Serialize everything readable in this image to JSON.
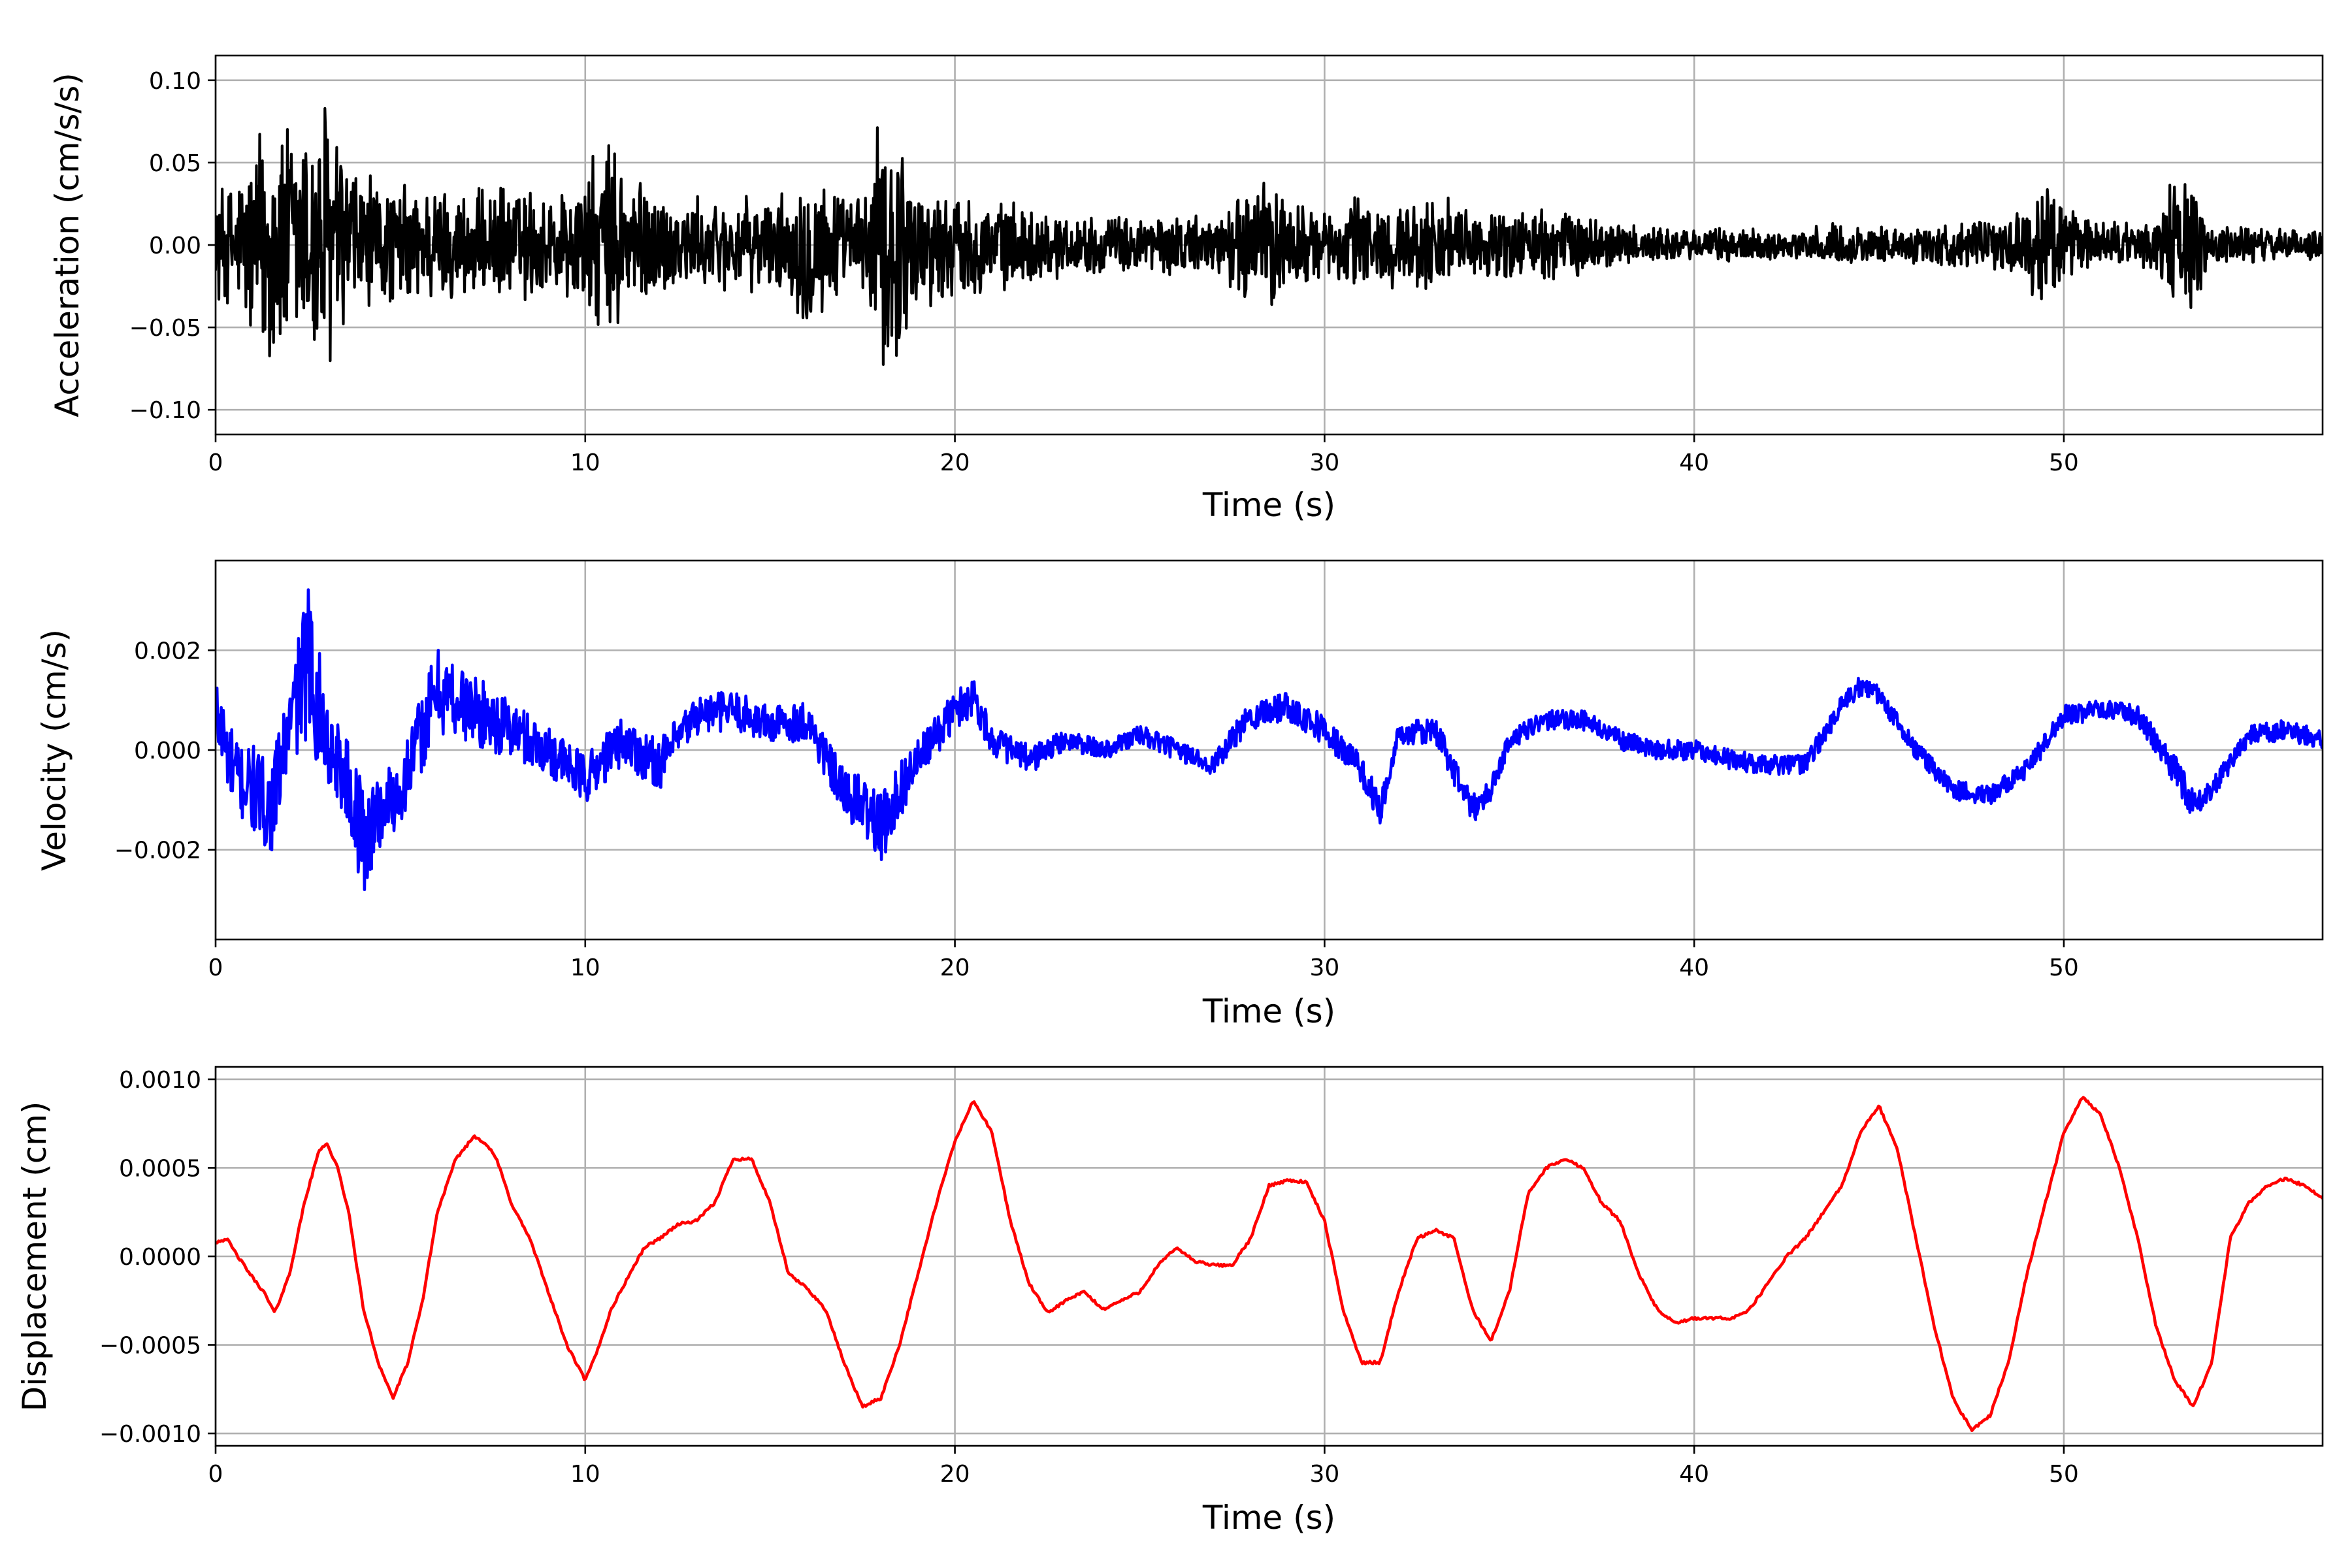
{
  "chart_data": [
    {
      "type": "line",
      "xlabel": "Time (s)",
      "ylabel": "Acceleration (cm/s/s)",
      "xlim": [
        0,
        57
      ],
      "ylim": [
        -0.115,
        0.115
      ],
      "xticks": [
        0,
        10,
        20,
        30,
        40,
        50
      ],
      "xtick_labels": [
        "0",
        "10",
        "20",
        "30",
        "40",
        "50"
      ],
      "yticks": [
        0.1,
        0.05,
        0.0,
        -0.05,
        -0.1
      ],
      "ytick_labels": [
        "0.10",
        "0.05",
        "0.00",
        "−0.05",
        "−0.10"
      ],
      "grid": true,
      "color": "#000000",
      "series": [
        {
          "x": [
            0,
            0.5,
            1,
            1.5,
            2,
            2.5,
            3,
            3.5,
            4,
            4.5,
            5,
            6,
            7,
            8,
            9,
            10,
            10.5,
            11,
            12,
            13,
            14,
            15,
            15.5,
            16,
            16.5,
            17,
            17.5,
            18,
            18.5,
            19,
            20,
            21,
            22,
            23,
            24,
            25,
            26,
            27,
            28,
            28.5,
            29,
            30,
            31,
            32,
            33,
            34,
            35,
            36,
            37,
            38,
            39,
            40,
            41,
            42,
            43,
            44,
            45,
            46,
            47,
            48,
            49,
            49.5,
            50,
            51,
            52,
            52.5,
            53,
            53.5,
            54,
            55,
            56,
            57
          ],
          "amp": [
            0.04,
            0.04,
            0.07,
            0.09,
            0.08,
            0.09,
            0.1,
            0.06,
            0.05,
            0.04,
            0.04,
            0.04,
            0.035,
            0.04,
            0.035,
            0.045,
            0.07,
            0.06,
            0.035,
            0.03,
            0.03,
            0.03,
            0.035,
            0.055,
            0.05,
            0.03,
            0.035,
            0.085,
            0.08,
            0.04,
            0.035,
            0.03,
            0.025,
            0.02,
            0.018,
            0.02,
            0.02,
            0.018,
            0.04,
            0.045,
            0.035,
            0.02,
            0.035,
            0.025,
            0.035,
            0.02,
            0.025,
            0.025,
            0.02,
            0.015,
            0.012,
            0.01,
            0.012,
            0.01,
            0.01,
            0.015,
            0.012,
            0.012,
            0.015,
            0.015,
            0.025,
            0.05,
            0.025,
            0.015,
            0.015,
            0.02,
            0.05,
            0.04,
            0.015,
            0.012,
            0.01,
            0.01
          ]
        }
      ]
    },
    {
      "type": "line",
      "xlabel": "Time (s)",
      "ylabel": "Velocity (cm/s)",
      "xlim": [
        0,
        57
      ],
      "ylim": [
        -0.0038,
        0.0038
      ],
      "xticks": [
        0,
        10,
        20,
        30,
        40,
        50
      ],
      "xtick_labels": [
        "0",
        "10",
        "20",
        "30",
        "40",
        "50"
      ],
      "yticks": [
        0.002,
        0.0,
        -0.002
      ],
      "ytick_labels": [
        "0.002",
        "0.000",
        "−0.002"
      ],
      "grid": true,
      "color": "#0000ff",
      "series": [
        {
          "x": [
            0,
            0.5,
            1,
            1.5,
            2,
            2.5,
            3,
            3.5,
            4,
            4.5,
            5,
            6,
            7,
            8,
            9,
            10,
            11,
            12,
            13,
            14,
            15,
            16,
            17,
            17.5,
            18,
            18.5,
            19,
            20,
            20.5,
            21,
            22,
            23,
            24,
            25,
            26,
            27,
            28,
            29,
            30,
            31,
            31.5,
            32,
            33,
            34,
            34.5,
            35,
            36,
            37,
            38,
            39,
            40,
            41,
            42,
            43,
            44,
            44.5,
            45,
            46,
            47,
            48,
            49,
            50,
            51,
            52,
            53,
            53.5,
            54,
            55,
            56,
            57
          ],
          "y": [
            0.0008,
            -0.0005,
            -0.0008,
            -0.0012,
            0.0005,
            0.0018,
            0.0002,
            -0.0005,
            -0.0018,
            -0.0012,
            -0.0008,
            0.0012,
            0.0008,
            0.0004,
            0.0,
            -0.0006,
            0.0002,
            -0.0003,
            0.0007,
            0.0008,
            0.0005,
            0.0006,
            -0.0009,
            -0.0011,
            -0.0016,
            -0.0008,
            -0.0002,
            0.0008,
            0.0011,
            0.0002,
            -0.0002,
            0.0002,
            0.0,
            0.0003,
            0.0,
            -0.0003,
            0.0007,
            0.0009,
            0.0004,
            -0.0004,
            -0.0012,
            0.0003,
            0.0004,
            -0.0012,
            -0.0008,
            0.0002,
            0.0006,
            0.0006,
            0.0002,
            0.0,
            0.0,
            -0.0002,
            -0.0003,
            -0.0003,
            0.0009,
            0.0013,
            0.0011,
            0.0,
            -0.0008,
            -0.0009,
            -0.0004,
            0.0007,
            0.0008,
            0.0007,
            -0.0004,
            -0.0011,
            -0.0008,
            0.0003,
            0.0004,
            0.0002
          ],
          "noise": [
            0.0008,
            0.0008,
            0.0009,
            0.0009,
            0.0008,
            0.0016,
            0.0009,
            0.0008,
            0.0012,
            0.0008,
            0.0007,
            0.0009,
            0.0007,
            0.0006,
            0.0005,
            0.0005,
            0.0005,
            0.0005,
            0.0004,
            0.0004,
            0.0004,
            0.0004,
            0.0005,
            0.0006,
            0.0007,
            0.0006,
            0.0004,
            0.0004,
            0.0004,
            0.0003,
            0.0003,
            0.0002,
            0.0002,
            0.0002,
            0.0002,
            0.0002,
            0.0003,
            0.0003,
            0.0003,
            0.0003,
            0.0003,
            0.0002,
            0.0003,
            0.0003,
            0.0002,
            0.0002,
            0.0002,
            0.0002,
            0.0002,
            0.0002,
            0.0002,
            0.0002,
            0.0002,
            0.0002,
            0.0002,
            0.0002,
            0.0002,
            0.0002,
            0.0002,
            0.0002,
            0.0002,
            0.0002,
            0.0002,
            0.0002,
            0.0003,
            0.0003,
            0.0002,
            0.0002,
            0.0002,
            0.0002
          ]
        }
      ]
    },
    {
      "type": "line",
      "xlabel": "Time (s)",
      "ylabel": "Displacement (cm)",
      "xlim": [
        0,
        57
      ],
      "ylim": [
        -0.00107,
        0.00107
      ],
      "xticks": [
        0,
        10,
        20,
        30,
        40,
        50
      ],
      "xtick_labels": [
        "0",
        "10",
        "20",
        "30",
        "40",
        "50"
      ],
      "yticks": [
        0.001,
        0.0005,
        0.0,
        -0.0005,
        -0.001
      ],
      "ytick_labels": [
        "0.0010",
        "0.0005",
        "0.0000",
        "−0.0005",
        "−0.0010"
      ],
      "grid": true,
      "color": "#ff0000",
      "series": [
        {
          "x": [
            0,
            0.3,
            0.6,
            1.0,
            1.3,
            1.6,
            2.0,
            2.4,
            2.8,
            3.0,
            3.3,
            3.6,
            4.0,
            4.4,
            4.8,
            5.2,
            5.6,
            6.0,
            6.5,
            7.0,
            7.3,
            7.6,
            8.0,
            8.5,
            9.0,
            9.5,
            10.0,
            10.3,
            10.7,
            11.2,
            11.6,
            12.0,
            12.5,
            13.0,
            13.5,
            14.0,
            14.5,
            15.0,
            15.5,
            16.0,
            16.5,
            17.0,
            17.5,
            18.0,
            18.5,
            19.0,
            19.5,
            20.0,
            20.5,
            21.0,
            21.5,
            22.0,
            22.5,
            23.0,
            23.5,
            24.0,
            24.5,
            25.0,
            25.5,
            26.0,
            26.5,
            27.0,
            27.5,
            28.0,
            28.5,
            29.0,
            29.5,
            30.0,
            30.5,
            31.0,
            31.5,
            32.0,
            32.5,
            33.0,
            33.5,
            34.0,
            34.5,
            35.0,
            35.5,
            36.0,
            36.5,
            37.0,
            37.5,
            38.0,
            38.5,
            39.0,
            39.5,
            40.0,
            40.5,
            41.0,
            41.5,
            42.0,
            42.5,
            43.0,
            43.5,
            44.0,
            44.5,
            45.0,
            45.5,
            46.0,
            46.5,
            47.0,
            47.5,
            48.0,
            48.5,
            49.0,
            49.5,
            50.0,
            50.5,
            51.0,
            51.5,
            52.0,
            52.5,
            53.0,
            53.5,
            54.0,
            54.5,
            55.0,
            55.5,
            56.0,
            56.5,
            57.0
          ],
          "y": [
            8e-05,
            0.0001,
            0.0,
            -0.00012,
            -0.0002,
            -0.00032,
            -0.0001,
            0.0003,
            0.0006,
            0.00064,
            0.0005,
            0.00025,
            -0.0003,
            -0.0006,
            -0.0008,
            -0.0006,
            -0.00025,
            0.00025,
            0.00055,
            0.00068,
            0.00064,
            0.00055,
            0.0003,
            0.0001,
            -0.0002,
            -0.0005,
            -0.0007,
            -0.00055,
            -0.0003,
            -0.0001,
            5e-05,
            0.0001,
            0.00018,
            0.0002,
            0.0003,
            0.00055,
            0.00055,
            0.0003,
            -0.0001,
            -0.00018,
            -0.0003,
            -0.0006,
            -0.00085,
            -0.0008,
            -0.0005,
            -0.0001,
            0.0003,
            0.00065,
            0.00088,
            0.0007,
            0.0002,
            -0.00015,
            -0.00032,
            -0.00025,
            -0.0002,
            -0.0003,
            -0.00025,
            -0.0002,
            -5e-05,
            5e-05,
            -3e-05,
            -5e-05,
            -5e-05,
            0.0001,
            0.0004,
            0.00043,
            0.00042,
            0.0002,
            -0.0003,
            -0.0006,
            -0.0006,
            -0.0002,
            0.0001,
            0.00015,
            0.0001,
            -0.0003,
            -0.00048,
            -0.0002,
            0.00035,
            0.0005,
            0.00055,
            0.0005,
            0.0003,
            0.0002,
            -0.0001,
            -0.0003,
            -0.00038,
            -0.00035,
            -0.00035,
            -0.00035,
            -0.0003,
            -0.00015,
            0.0,
            0.0001,
            0.00025,
            0.0004,
            0.0007,
            0.00085,
            0.0006,
            0.0001,
            -0.0004,
            -0.0008,
            -0.00098,
            -0.0009,
            -0.0006,
            -0.0001,
            0.0003,
            0.0007,
            0.0009,
            0.0008,
            0.0005,
            0.0001,
            -0.0004,
            -0.0007,
            -0.00085,
            -0.0006,
            0.0001,
            0.0003,
            0.0004,
            0.00044,
            0.0004,
            0.00033
          ]
        }
      ]
    }
  ]
}
